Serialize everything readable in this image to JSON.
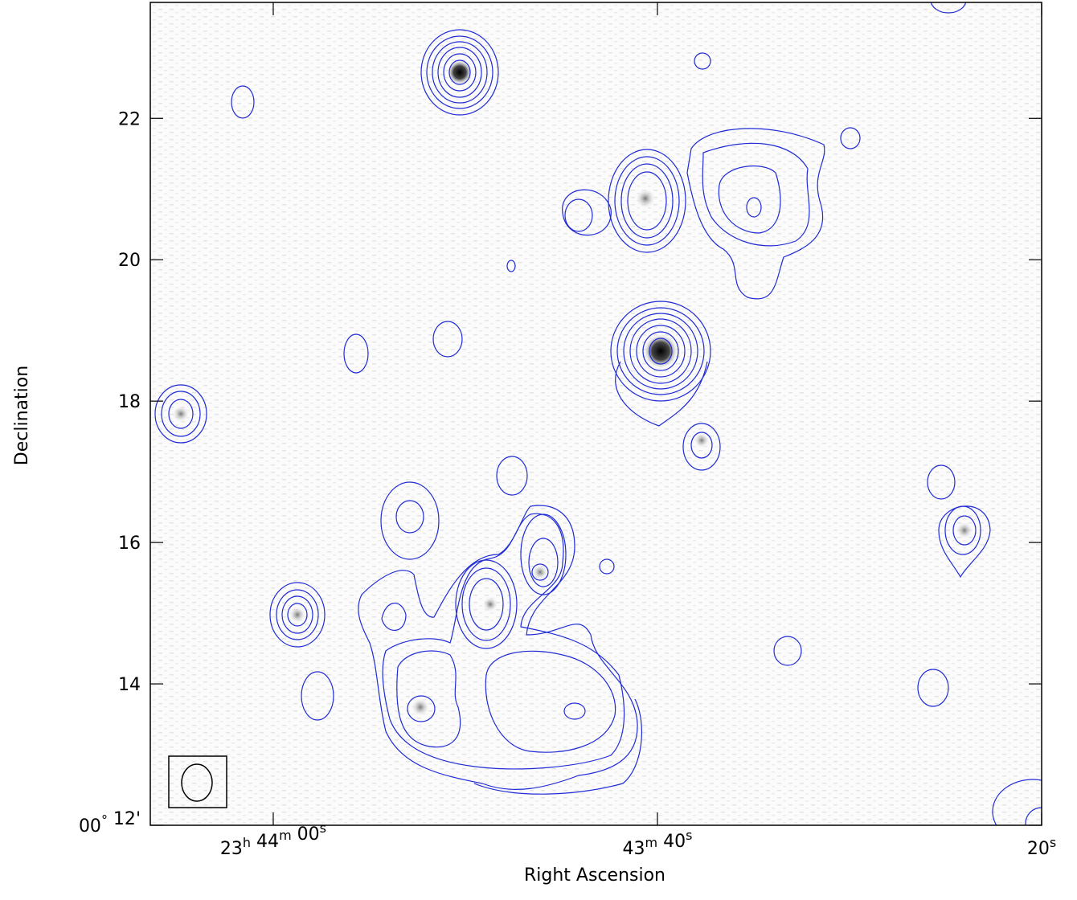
{
  "chart_data": {
    "type": "image",
    "xlabel": "Right Ascension",
    "ylabel": "Declination",
    "xlim": [
      66.4,
      20
    ],
    "ylim": [
      12,
      23.64
    ],
    "xticks": [
      {
        "value": 60,
        "label": "23h 44m 00s"
      },
      {
        "value": 40,
        "label": "43m 40s"
      },
      {
        "value": 20,
        "label": "20s"
      }
    ],
    "yticks": [
      {
        "value": 12,
        "label": "00° 12'"
      },
      14,
      16,
      18,
      20,
      22
    ],
    "contour_color": "#1f2bd6"
  }
}
